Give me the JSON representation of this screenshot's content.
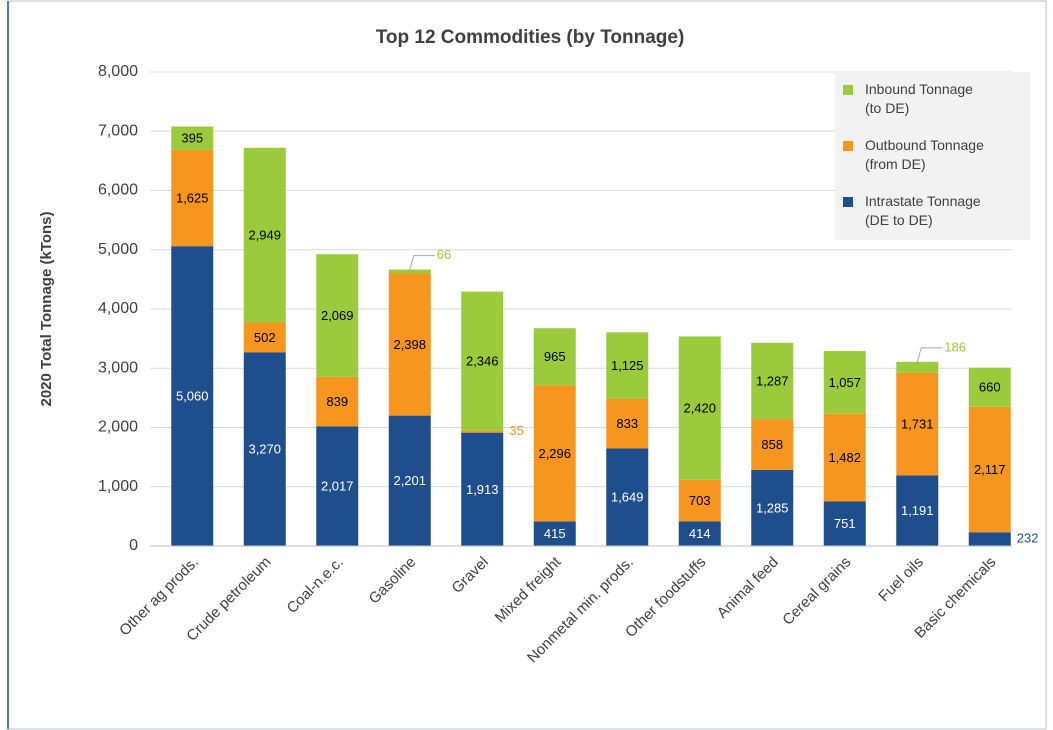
{
  "chart_data": {
    "type": "stacked_bar",
    "title": "Top 12 Commodities (by Tonnage)",
    "y_label": "2020 Total Tonnage (kTons)",
    "categories": [
      "Other ag prods.",
      "Crude petroleum",
      "Coal-n.e.c.",
      "Gasoline",
      "Gravel",
      "Mixed freight",
      "Nonmetal  min. prods.",
      "Other foodstuffs",
      "Animal  feed",
      "Cereal grains",
      "Fuel oils",
      "Basic chemicals"
    ],
    "series": [
      {
        "name": "Intrastate Tonnage (DE to DE)",
        "color": "#1f4e8c",
        "label_color": "#ffffff",
        "values": [
          5060,
          3270,
          2017,
          2201,
          1913,
          415,
          1649,
          414,
          1285,
          751,
          1191,
          232
        ],
        "value_labels": [
          "5,060",
          "3,270",
          "2,017",
          "2,201",
          "1,913",
          "415",
          "1,649",
          "414",
          "1,285",
          "751",
          "1,191",
          "232"
        ]
      },
      {
        "name": "Outbound Tonnage (from DE)",
        "color": "#f7961e",
        "label_color": "#000000",
        "values": [
          1625,
          502,
          839,
          2398,
          35,
          2296,
          833,
          703,
          858,
          1482,
          1731,
          2117
        ],
        "value_labels": [
          "1,625",
          "502",
          "839",
          "2,398",
          "35",
          "2,296",
          "833",
          "703",
          "858",
          "1,482",
          "1,731",
          "2,117"
        ]
      },
      {
        "name": "Inbound Tonnage (to DE)",
        "color": "#9bcb3c",
        "label_color": "#000000",
        "values": [
          395,
          2949,
          2069,
          66,
          2346,
          965,
          1125,
          2420,
          1287,
          1057,
          186,
          660
        ],
        "value_labels": [
          "395",
          "2,949",
          "2,069",
          "66",
          "2,346",
          "965",
          "1,125",
          "2,420",
          "1,287",
          "1,057",
          "186",
          "660"
        ]
      }
    ],
    "ylim": [
      0,
      8000
    ],
    "yticks": [
      0,
      {
        "value": 1000,
        "label": "1,000"
      },
      {
        "value": 2000,
        "label": "2,000"
      },
      {
        "value": 3000,
        "label": "3,000"
      },
      {
        "value": 4000,
        "label": "4,000"
      },
      {
        "value": 5000,
        "label": "5,000"
      },
      {
        "value": 6000,
        "label": "6,000"
      },
      {
        "value": 7000,
        "label": "7,000"
      },
      {
        "value": 8000,
        "label": "8,000"
      }
    ],
    "grid": true,
    "legend": "top-right"
  }
}
